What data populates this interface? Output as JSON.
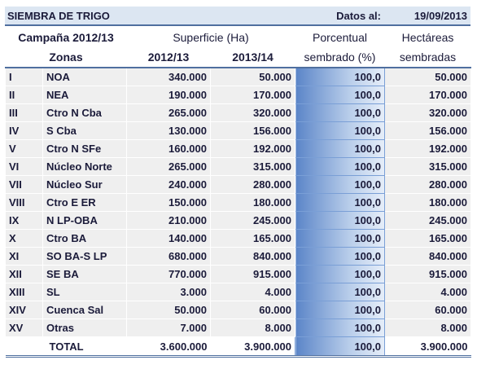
{
  "header": {
    "title": "SIEMBRA DE TRIGO",
    "date_label": "Datos al:",
    "date": "19/09/2013"
  },
  "columns": {
    "campaign": "Campaña 2012/13",
    "surface": "Superficie (Ha)",
    "percent_1": "Porcentual",
    "percent_2": "sembrado (%)",
    "hectares_1": "Hectáreas",
    "hectares_2": "sembradas",
    "zones": "Zonas",
    "year_1": "2012/13",
    "year_2": "2013/14"
  },
  "rows": [
    [
      "I",
      "NOA",
      "340.000",
      "50.000",
      "100,0",
      "50.000"
    ],
    [
      "II",
      "NEA",
      "190.000",
      "170.000",
      "100,0",
      "170.000"
    ],
    [
      "III",
      "Ctro N Cba",
      "265.000",
      "320.000",
      "100,0",
      "320.000"
    ],
    [
      "IV",
      "S Cba",
      "130.000",
      "156.000",
      "100,0",
      "156.000"
    ],
    [
      "V",
      "Ctro N SFe",
      "160.000",
      "192.000",
      "100,0",
      "192.000"
    ],
    [
      "VI",
      "Núcleo Norte",
      "265.000",
      "315.000",
      "100,0",
      "315.000"
    ],
    [
      "VII",
      "Núcleo Sur",
      "240.000",
      "280.000",
      "100,0",
      "280.000"
    ],
    [
      "VIII",
      "Ctro E ER",
      "150.000",
      "180.000",
      "100,0",
      "180.000"
    ],
    [
      "IX",
      "N LP-OBA",
      "210.000",
      "245.000",
      "100,0",
      "245.000"
    ],
    [
      "X",
      "Ctro BA",
      "140.000",
      "165.000",
      "100,0",
      "165.000"
    ],
    [
      "XI",
      "SO BA-S LP",
      "680.000",
      "840.000",
      "100,0",
      "840.000"
    ],
    [
      "XII",
      "SE BA",
      "770.000",
      "915.000",
      "100,0",
      "915.000"
    ],
    [
      "XIII",
      "SL",
      "3.000",
      "4.000",
      "100,0",
      "4.000"
    ],
    [
      "XIV",
      "Cuenca Sal",
      "50.000",
      "60.000",
      "100,0",
      "60.000"
    ],
    [
      "XV",
      "Otras",
      "7.000",
      "8.000",
      "100,0",
      "8.000"
    ]
  ],
  "total": {
    "label": "TOTAL",
    "year_1": "3.600.000",
    "year_2": "3.900.000",
    "percent": "100,0",
    "hectares": "3.900.000"
  }
}
